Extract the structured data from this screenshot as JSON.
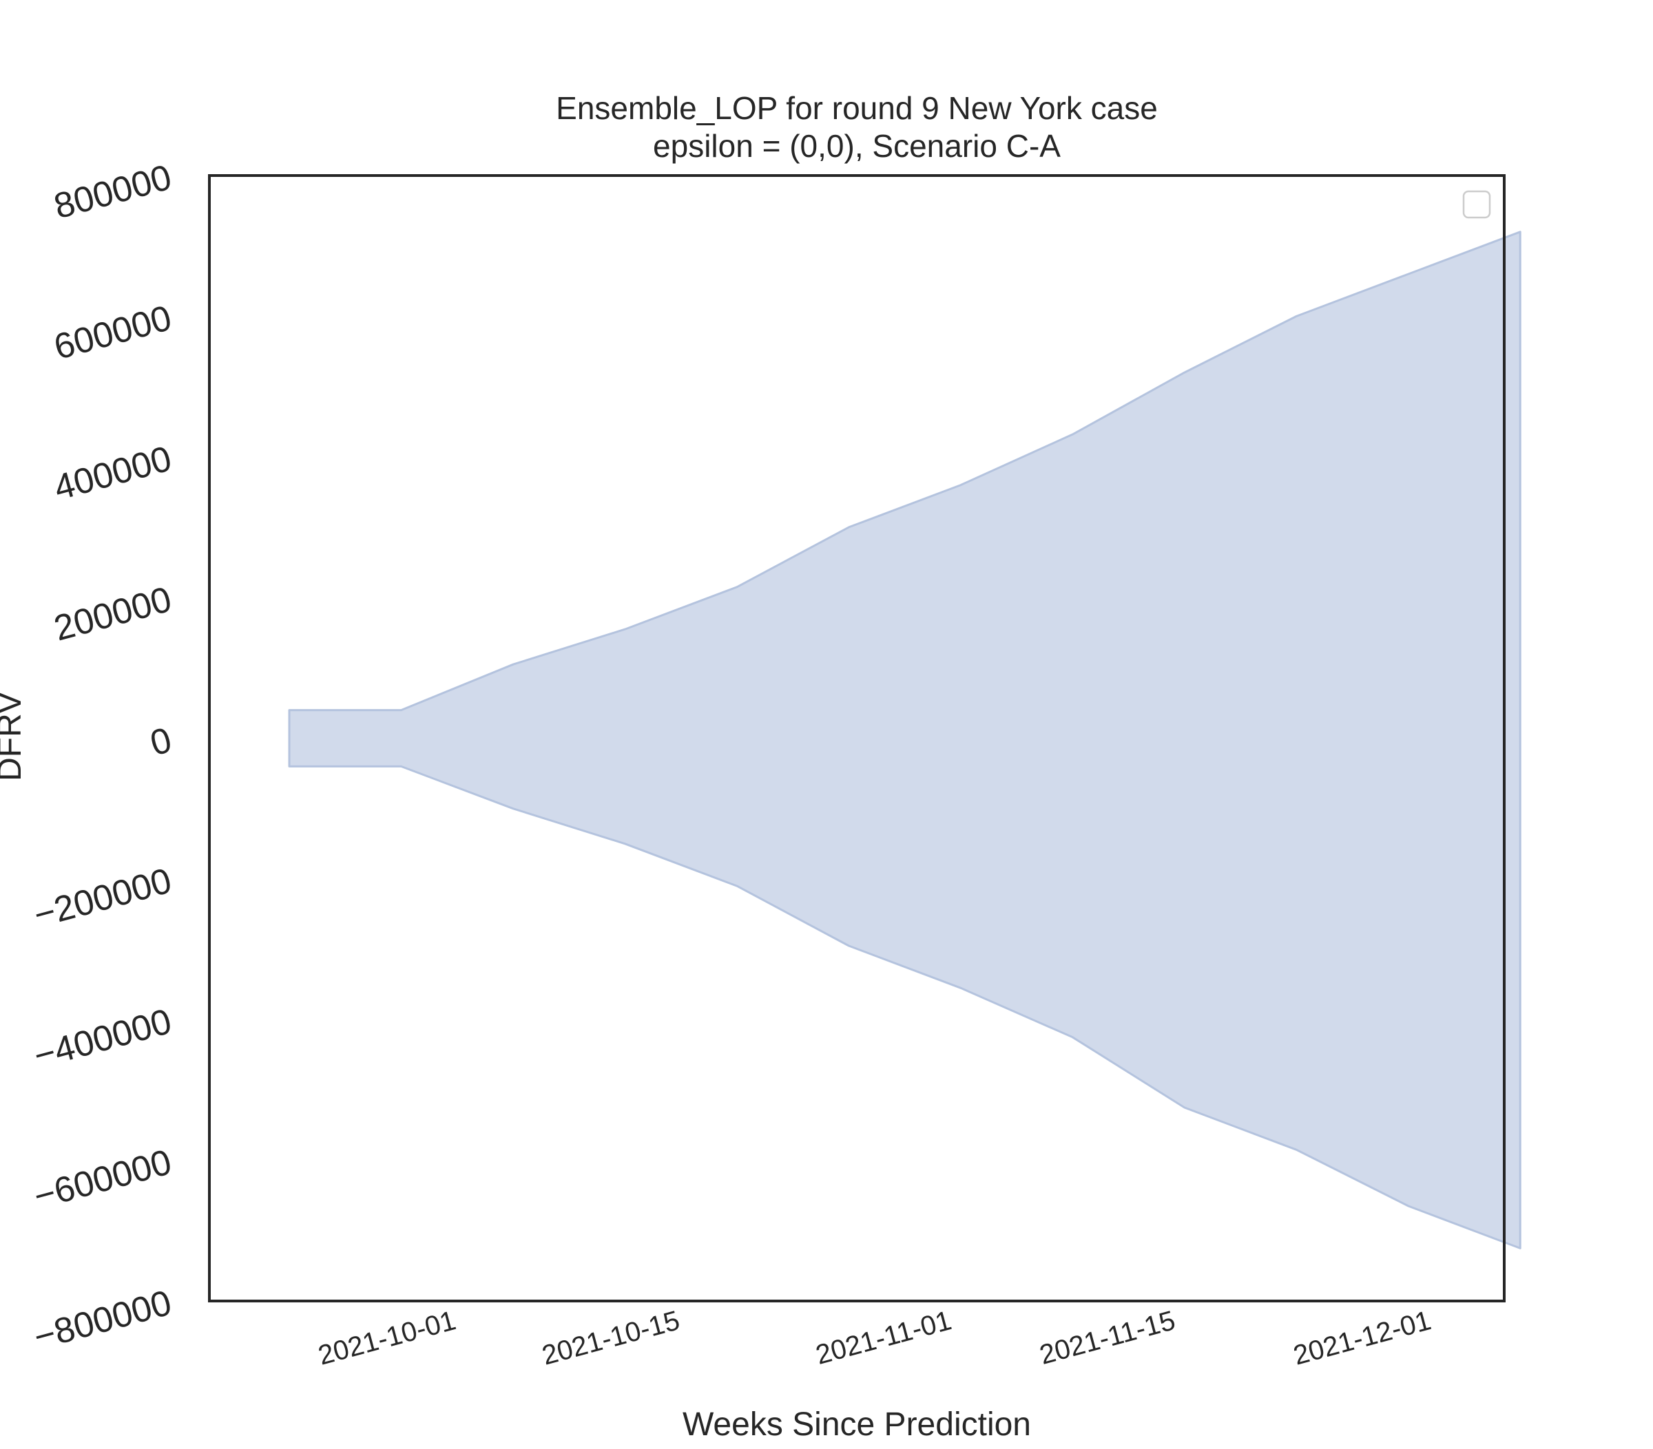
{
  "chart_data": {
    "type": "area",
    "title_lines": [
      "Ensemble_LOP for round 9 New York case",
      "epsilon = (0,0), Scenario C-A"
    ],
    "xlabel": "Weeks Since Prediction",
    "ylabel": "DFRV",
    "x_ticks": [
      "2021-10-01",
      "2021-10-15",
      "2021-11-01",
      "2021-11-15",
      "2021-12-01"
    ],
    "y_ticks": [
      "800000",
      "600000",
      "400000",
      "200000",
      "0",
      "−200000",
      "−400000",
      "−600000",
      "−800000"
    ],
    "y_tick_values": [
      800000,
      600000,
      400000,
      200000,
      0,
      -200000,
      -400000,
      -600000,
      -800000
    ],
    "ylim": [
      -800000,
      800000
    ],
    "xlim": [
      "2021-09-16",
      "2021-12-06"
    ],
    "fill_color": "#d1daeb",
    "edge_color": "#b4c3de",
    "legend": {
      "position": "top-right",
      "entries": []
    },
    "grid": false,
    "series": [
      {
        "x": [
          "2021-09-21",
          "2021-09-28",
          "2021-10-05",
          "2021-10-12",
          "2021-10-19",
          "2021-10-26",
          "2021-11-02",
          "2021-11-09",
          "2021-11-16",
          "2021-11-23",
          "2021-11-30",
          "2021-12-07"
        ],
        "upper": [
          40000,
          40000,
          105000,
          155000,
          215000,
          300000,
          360000,
          432000,
          520000,
          600000,
          660000,
          720000
        ],
        "lower": [
          -40000,
          -40000,
          -100000,
          -150000,
          -210000,
          -295000,
          -355000,
          -425000,
          -525000,
          -585000,
          -665000,
          -725000
        ]
      }
    ]
  }
}
